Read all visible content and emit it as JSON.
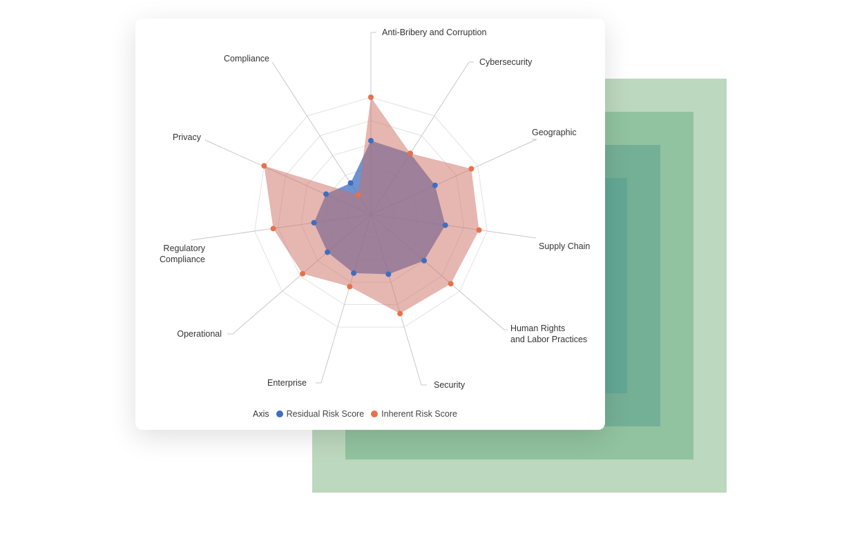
{
  "colors": {
    "residual": "#3d6fc0",
    "inherent": "#e8704a",
    "background_squares": [
      "#bcd8be",
      "#91c3a0",
      "#74b096",
      "#62a894"
    ]
  },
  "chart_data": {
    "type": "radar",
    "axes": [
      "Anti-Bribery and Corruption",
      "Cybersecurity",
      "Geographic",
      "Supply Chain",
      "Human Rights\nand Labor Practices",
      "Security",
      "Enterprise",
      "Operational",
      "Regulatory\nCompliance",
      "Privacy",
      "Compliance"
    ],
    "range": [
      0,
      100
    ],
    "grid_rings": 5,
    "grid": true,
    "legend_position": "bottom",
    "legend_title": "Axis",
    "series": [
      {
        "name": "Residual Risk Score",
        "color": "#3d6fc0",
        "values": [
          63,
          62,
          60,
          64,
          60,
          53,
          52,
          49,
          49,
          42,
          32
        ]
      },
      {
        "name": "Inherent Risk Score",
        "color": "#e8704a",
        "values": [
          100,
          62,
          94,
          93,
          90,
          88,
          64,
          77,
          84,
          100,
          20
        ]
      }
    ]
  }
}
